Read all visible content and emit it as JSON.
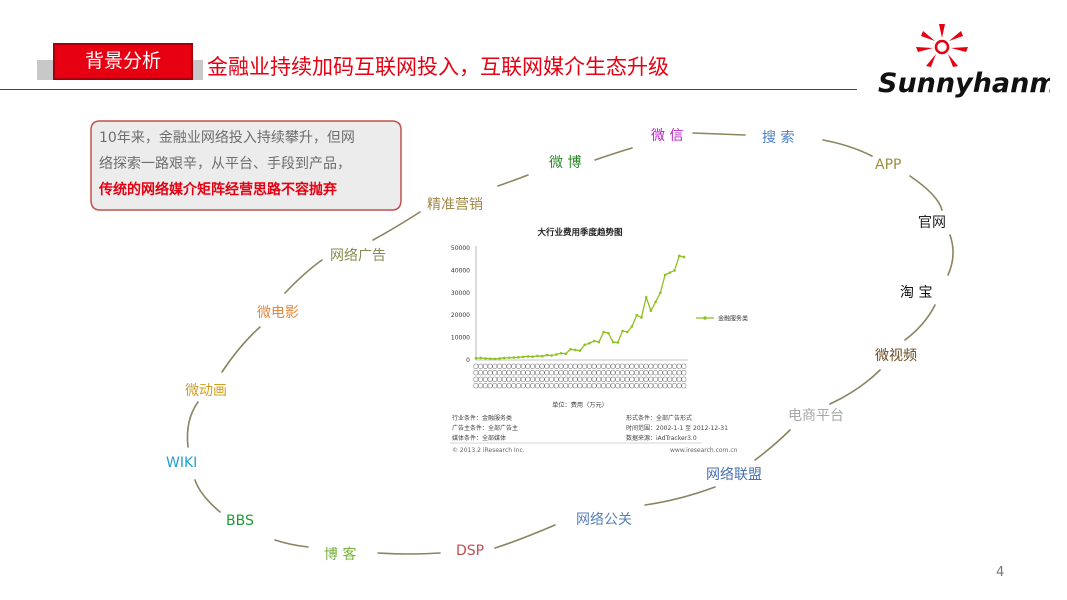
{
  "header": {
    "tag": "背景分析",
    "headline": "金融业持续加码互联网投入，互联网媒介生态升级"
  },
  "logo": {
    "text": "Sunnyhanmy"
  },
  "callout": {
    "line1": "10年来，金融业网络投入持续攀升，但网",
    "line2": "络探索一路艰辛，从平台、手段到产品，",
    "emphasis": "传统的网络媒介矩阵经营思路不容抛弃"
  },
  "ring": [
    {
      "label": "微 信",
      "color": "#c020c8"
    },
    {
      "label": "搜 索",
      "color": "#4d7fc4"
    },
    {
      "label": "APP",
      "color": "#9a9040"
    },
    {
      "label": "官网",
      "color": "#222222"
    },
    {
      "label": "淘 宝",
      "color": "#111111"
    },
    {
      "label": "微视频",
      "color": "#6b4a22"
    },
    {
      "label": "电商平台",
      "color": "#a8a8a8"
    },
    {
      "label": "网络联盟",
      "color": "#4a70b0"
    },
    {
      "label": "网络公关",
      "color": "#5a80b8"
    },
    {
      "label": "DSP",
      "color": "#c05050"
    },
    {
      "label": "博 客",
      "color": "#7ab040"
    },
    {
      "label": "BBS",
      "color": "#209838"
    },
    {
      "label": "WIKI",
      "color": "#20a0d0"
    },
    {
      "label": "微动画",
      "color": "#d0a020"
    },
    {
      "label": "微电影",
      "color": "#e08840"
    },
    {
      "label": "网络广告",
      "color": "#8a8a50"
    },
    {
      "label": "精准营销",
      "color": "#a08848"
    },
    {
      "label": "微 博",
      "color": "#2a8a2a"
    }
  ],
  "chart_data": {
    "type": "line",
    "title": "大行业费用季度趋势图",
    "unit_label": "单位：费用（万元）",
    "ylim": [
      0,
      50000
    ],
    "y_ticks": [
      "50000",
      "40000",
      "30000",
      "20000",
      "10000",
      "0"
    ],
    "series": [
      {
        "name": "金融服务类",
        "color": "#8dc21f",
        "values": [
          800,
          900,
          700,
          600,
          500,
          700,
          900,
          1000,
          1100,
          1200,
          1400,
          1600,
          1500,
          1800,
          1700,
          2200,
          2000,
          2500,
          3000,
          2800,
          4800,
          4500,
          4200,
          6800,
          7500,
          8500,
          8000,
          12500,
          12000,
          8000,
          7800,
          13000,
          12500,
          15000,
          20000,
          19000,
          28000,
          22000,
          26000,
          30000,
          38000,
          39000,
          40000,
          46500,
          46000
        ]
      }
    ],
    "meta": {
      "industry": "行业条件：金融服务类",
      "advertiser": "广告主条件：全部广告主",
      "media": "媒体条件：全部媒体",
      "format": "形式条件：全部广告形式",
      "period": "时间范围：2002-1-1 至 2012-12-31",
      "source": "数据来源：iAdTracker3.0",
      "copyright": "© 2013.2 iResearch Inc.",
      "site": "www.iresearch.com.cn"
    }
  },
  "page_number": "4"
}
